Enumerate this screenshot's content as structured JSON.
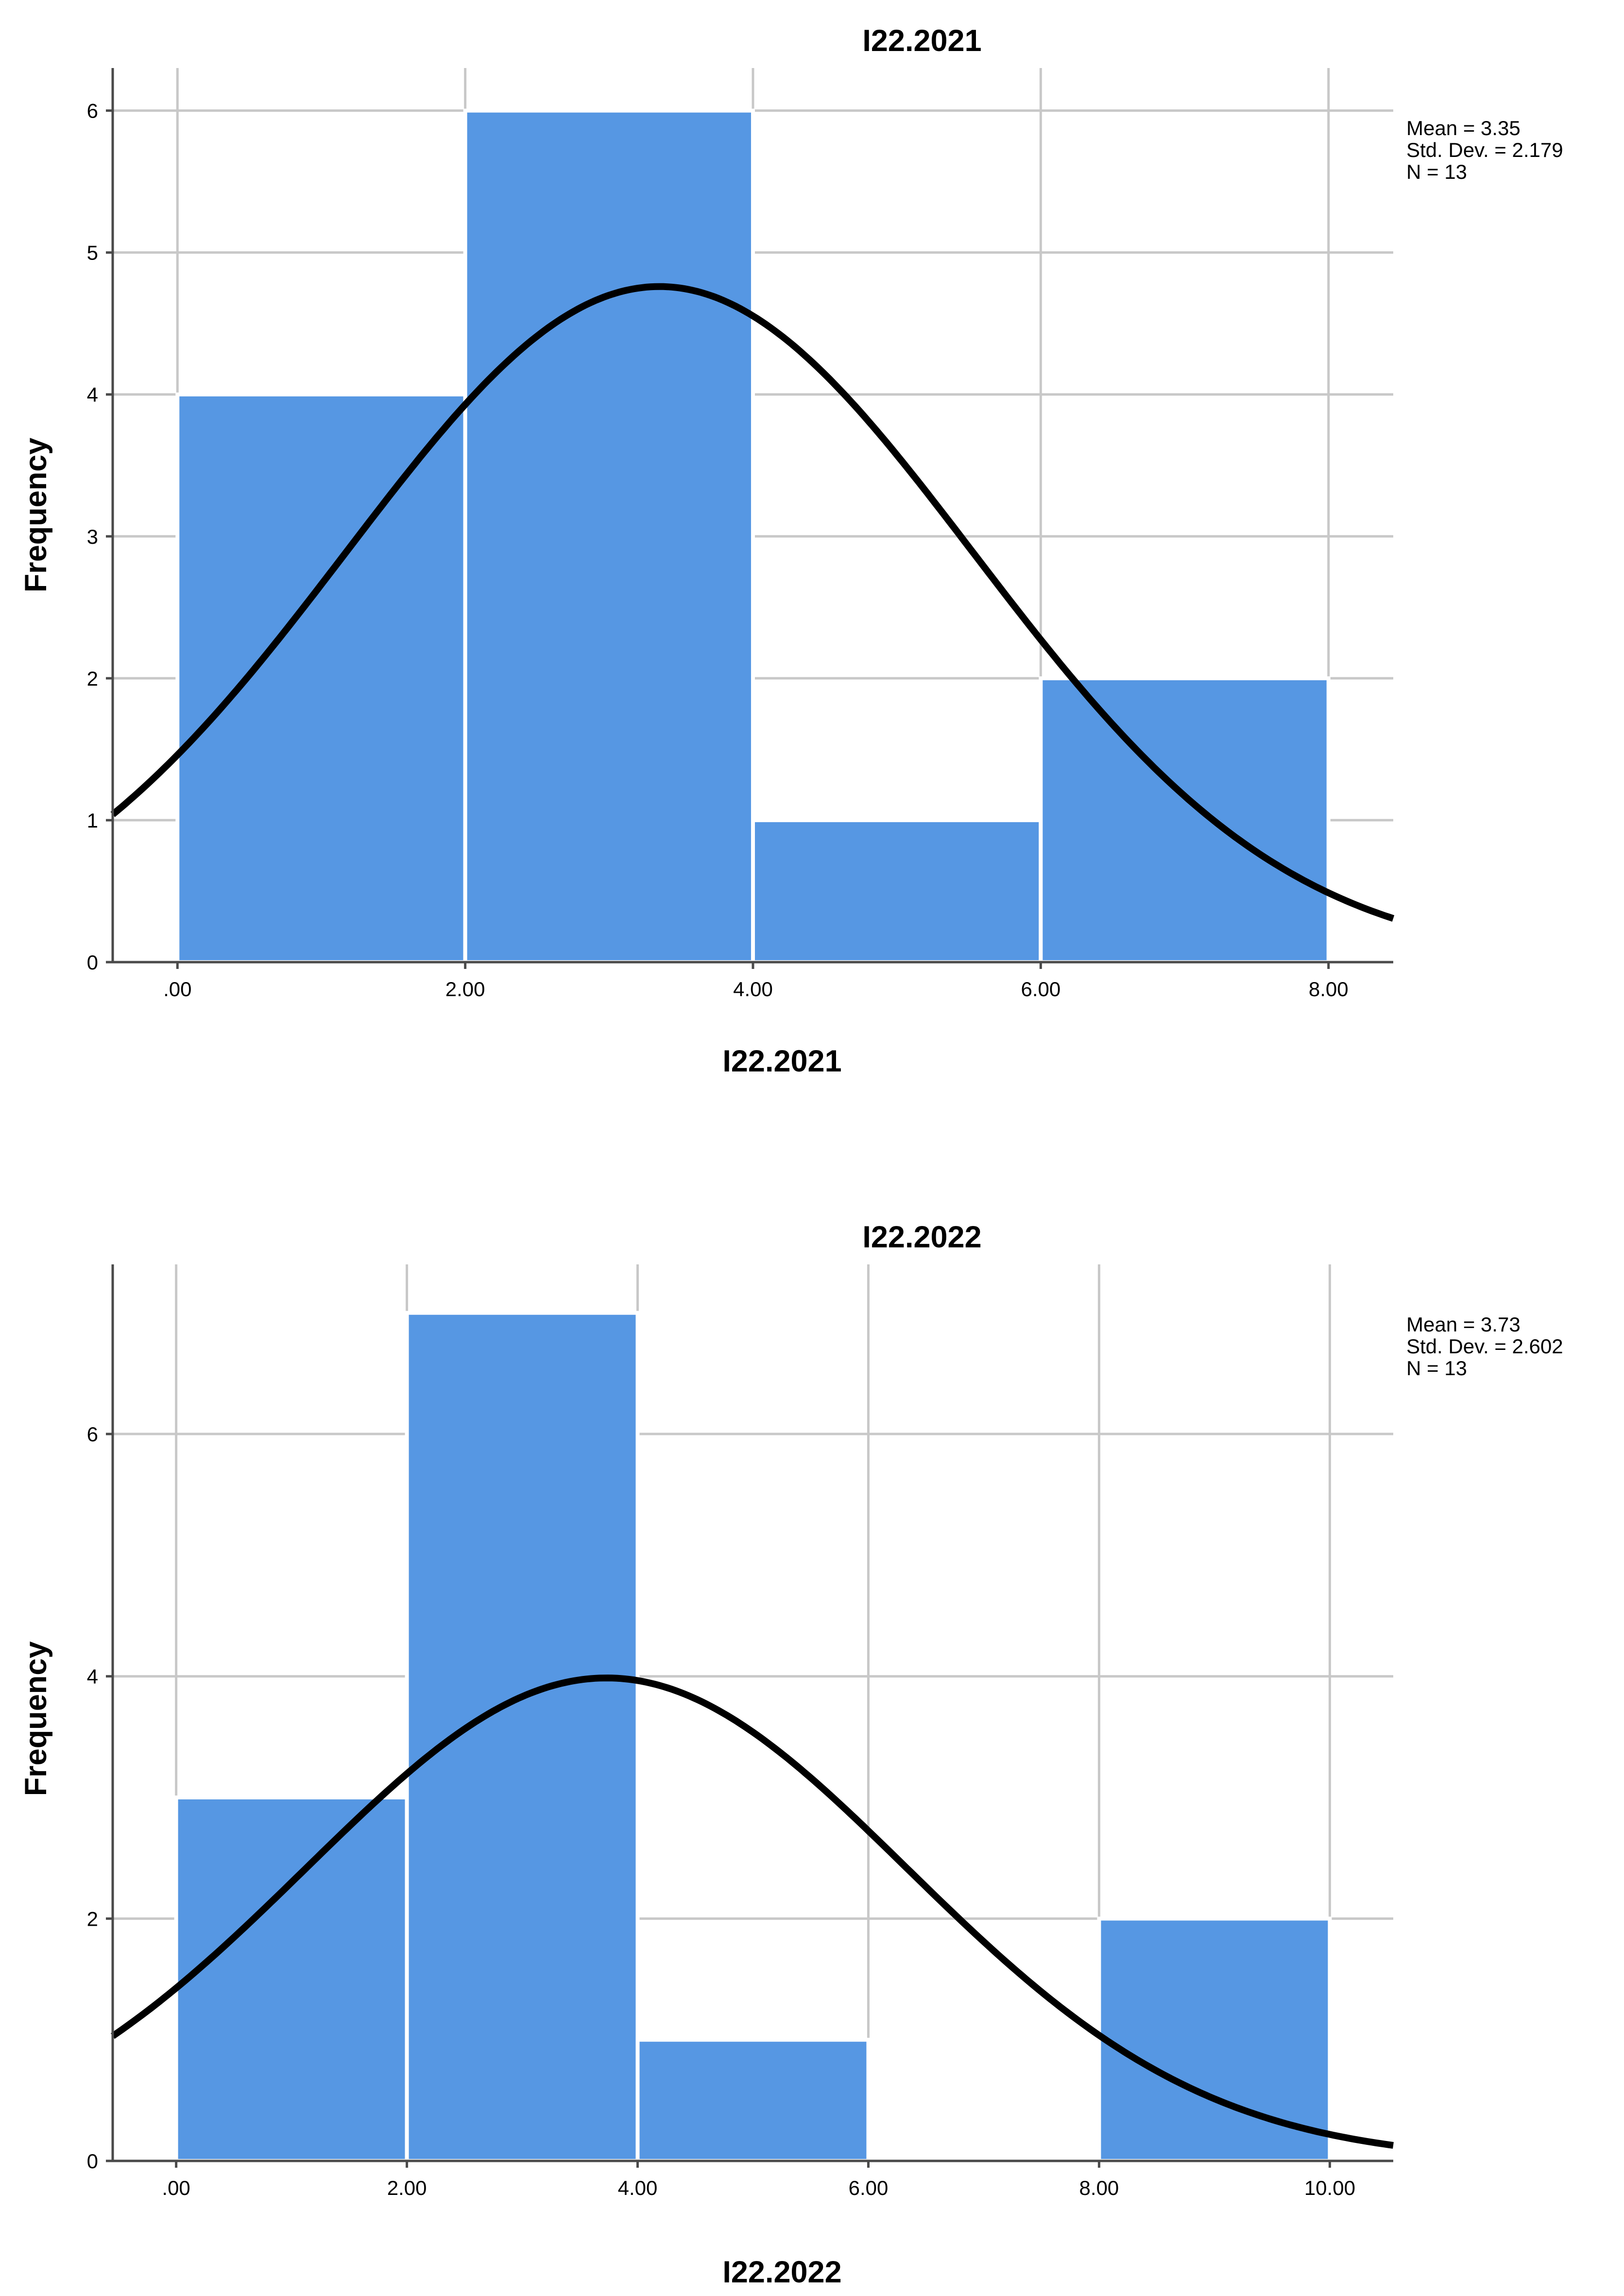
{
  "chart_data": [
    {
      "type": "bar",
      "title": "I22.2021",
      "xlabel": "I22.2021",
      "ylabel": "Frequency",
      "bin_edges": [
        0,
        2,
        4,
        6,
        8
      ],
      "values": [
        4,
        6,
        1,
        2
      ],
      "xlim": [
        -0.45,
        8.45
      ],
      "ylim": [
        0,
        6.3
      ],
      "x_ticks": [
        0,
        2,
        4,
        6,
        8
      ],
      "x_tick_labels": [
        ".00",
        "2.00",
        "4.00",
        "6.00",
        "8.00"
      ],
      "y_ticks": [
        0,
        1,
        2,
        3,
        4,
        5,
        6
      ],
      "y_tick_labels": [
        "0",
        "1",
        "2",
        "3",
        "4",
        "5",
        "6"
      ],
      "normal_curve": {
        "mean": 3.35,
        "std": 2.179,
        "n": 13,
        "bin_width": 2
      },
      "stats": [
        "Mean = 3.35",
        "Std. Dev. = 2.179",
        "N = 13"
      ],
      "grid": true,
      "legend": "top-right"
    },
    {
      "type": "bar",
      "title": "I22.2022",
      "xlabel": "I22.2022",
      "ylabel": "Frequency",
      "bin_edges": [
        0,
        2,
        4,
        6,
        8,
        10
      ],
      "values": [
        3,
        7,
        1,
        0,
        2
      ],
      "xlim": [
        -0.55,
        10.55
      ],
      "ylim": [
        0,
        7.4
      ],
      "x_ticks": [
        0,
        2,
        4,
        6,
        8,
        10
      ],
      "x_tick_labels": [
        ".00",
        "2.00",
        "4.00",
        "6.00",
        "8.00",
        "10.00"
      ],
      "y_ticks": [
        0,
        2,
        4,
        6
      ],
      "y_tick_labels": [
        "0",
        "2",
        "4",
        "6"
      ],
      "normal_curve": {
        "mean": 3.73,
        "std": 2.602,
        "n": 13,
        "bin_width": 2
      },
      "stats": [
        "Mean = 3.73",
        "Std. Dev. = 2.602",
        "N = 13"
      ],
      "grid": true,
      "legend": "top-right"
    }
  ]
}
